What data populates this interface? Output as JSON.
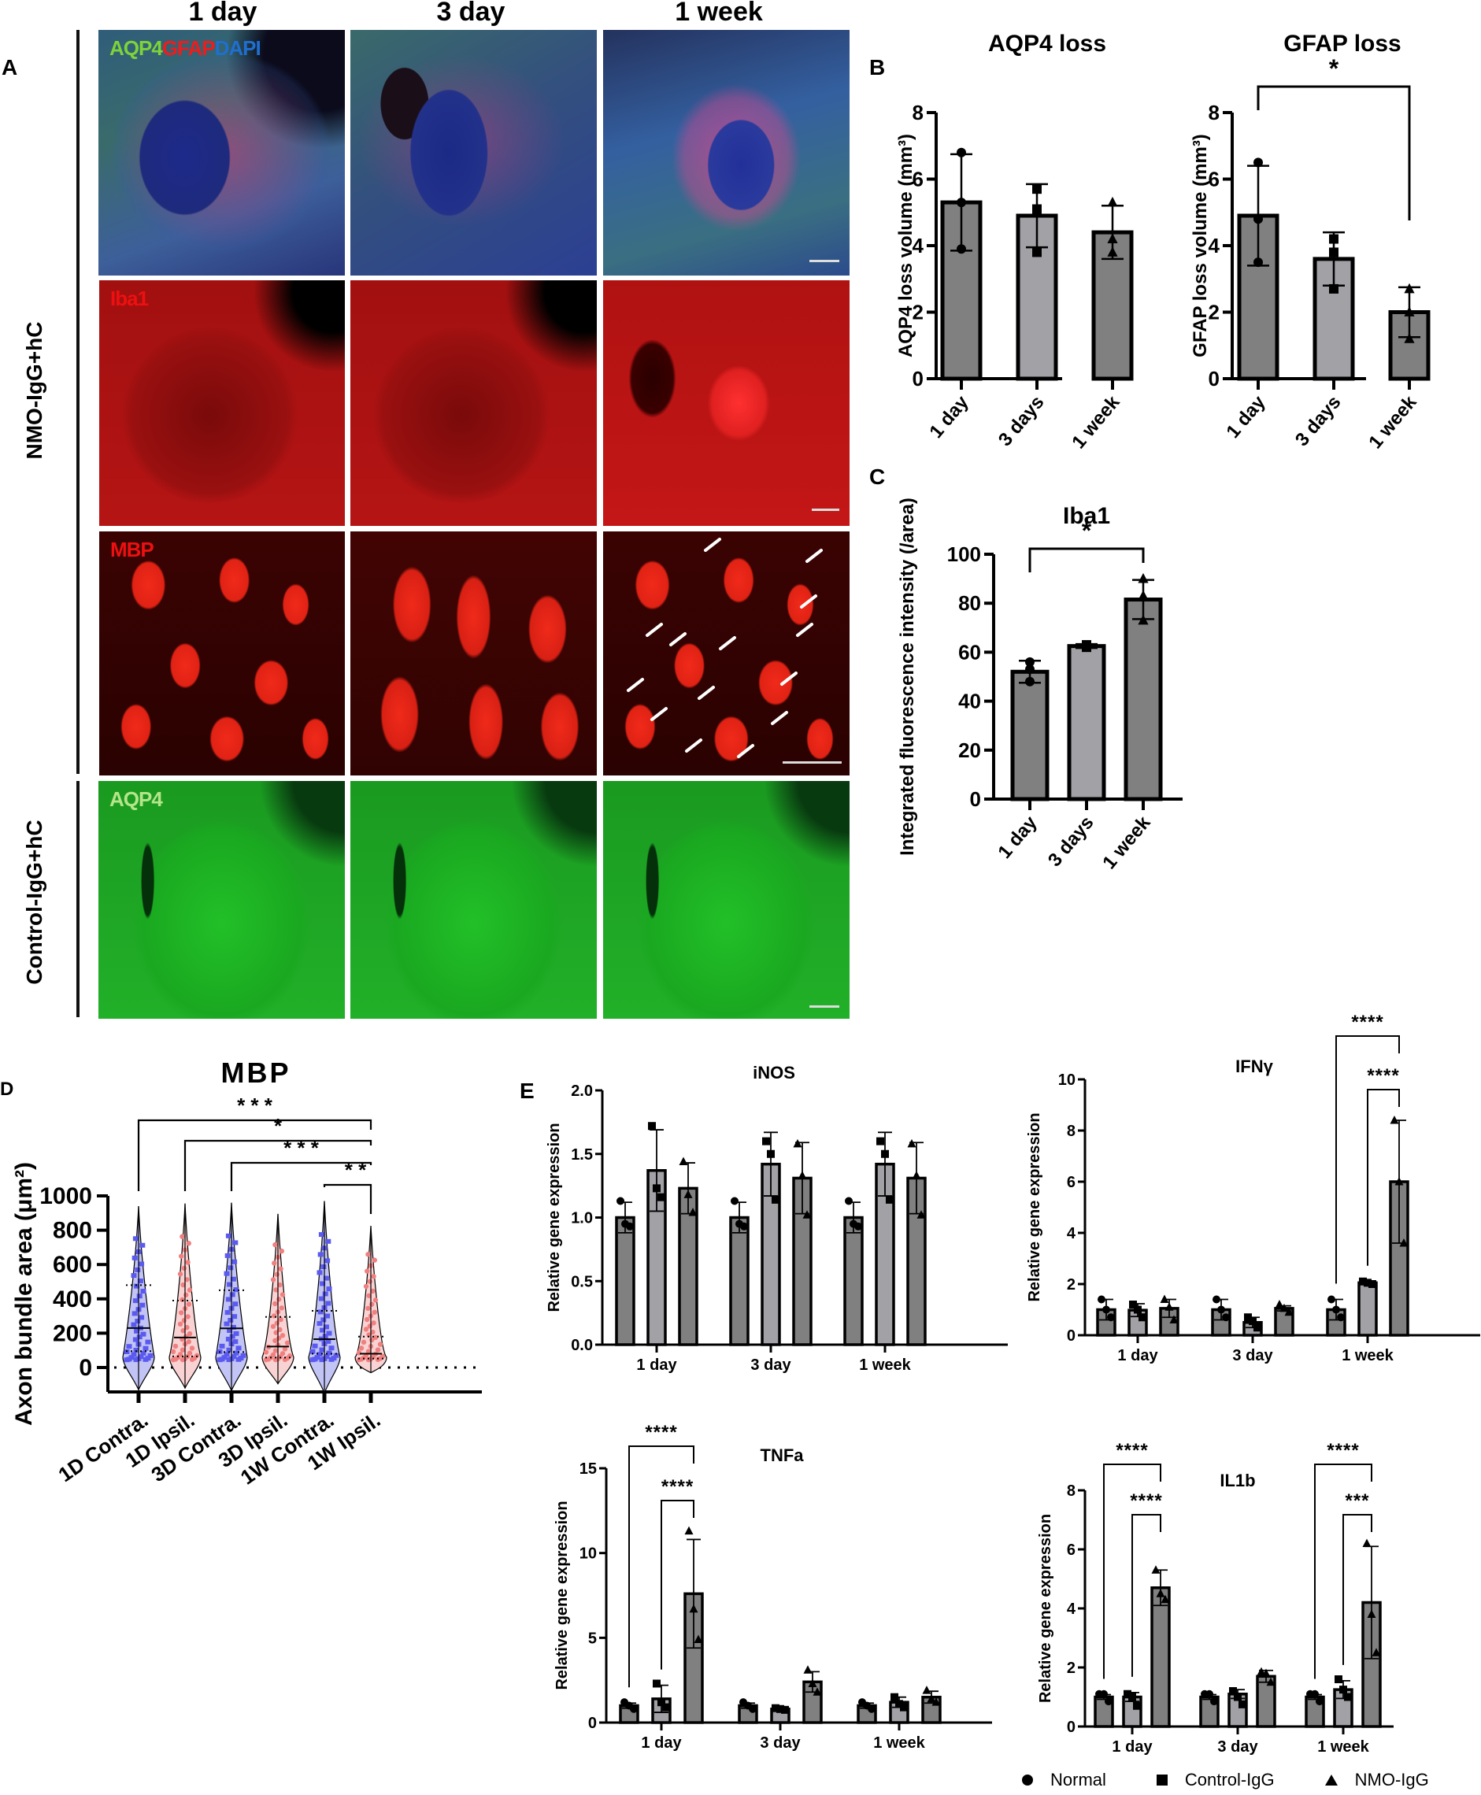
{
  "panel_A": {
    "letter": "A",
    "columns": [
      "1 day",
      "3 day",
      "1 week"
    ],
    "row_groups": [
      "NMO-IgG+hC",
      "Control-IgG+hC"
    ],
    "stain_labels": {
      "triple": [
        "AQP4",
        "GFAP",
        "DAPI"
      ],
      "iba1": "Iba1",
      "mbp": "MBP",
      "aqp4": "AQP4"
    },
    "stain_colors": {
      "AQP4": "#7dd33a",
      "GFAP": "#ee1c1c",
      "DAPI": "#1f6fd0",
      "Iba1": "#ee1010",
      "MBP": "#ee1010",
      "AQP4_ctrl": "#b5e58a"
    }
  },
  "legend": {
    "items": [
      {
        "symbol": "circle",
        "label": "Normal"
      },
      {
        "symbol": "square",
        "label": "Control-IgG"
      },
      {
        "symbol": "triangle",
        "label": "NMO-IgG"
      }
    ]
  },
  "colors": {
    "bar_dark": "#808080",
    "bar_light": "#a1a1a6",
    "violin_blue": "#5a5af0",
    "violin_blue_fill": "#c2c4f5",
    "violin_red": "#f08080",
    "violin_red_fill": "#f9d3d3"
  },
  "chart_data": [
    {
      "id": "B1",
      "panel": "B",
      "type": "bar",
      "title": "AQP4 loss",
      "ylabel": "AQP4 loss volume (mm³)",
      "categories": [
        "1 day",
        "3 days",
        "1 week"
      ],
      "values": [
        5.3,
        4.9,
        4.4
      ],
      "errors": [
        1.45,
        0.95,
        0.8
      ],
      "points": [
        [
          6.8,
          5.3,
          3.9
        ],
        [
          5.7,
          5.1,
          3.8
        ],
        [
          5.3,
          4.2,
          3.8
        ]
      ],
      "markers": [
        "circle",
        "square",
        "triangle"
      ],
      "fills": [
        "dark",
        "light",
        "dark"
      ],
      "ylim": [
        0,
        8
      ],
      "yticks": [
        0,
        2,
        4,
        6,
        8
      ],
      "sig": []
    },
    {
      "id": "B2",
      "panel": "B",
      "type": "bar",
      "title": "GFAP loss",
      "ylabel": "GFAP loss volume (mm³)",
      "categories": [
        "1 day",
        "3 days",
        "1 week"
      ],
      "values": [
        4.9,
        3.6,
        2.0
      ],
      "errors": [
        1.5,
        0.8,
        0.75
      ],
      "points": [
        [
          6.5,
          4.8,
          3.5
        ],
        [
          4.2,
          3.8,
          2.7
        ],
        [
          2.7,
          2.0,
          1.2
        ]
      ],
      "markers": [
        "circle",
        "square",
        "triangle"
      ],
      "fills": [
        "dark",
        "light",
        "dark"
      ],
      "ylim": [
        0,
        8
      ],
      "yticks": [
        0,
        2,
        4,
        6,
        8
      ],
      "sig": [
        {
          "from": 0,
          "to": 2,
          "label": "*"
        }
      ]
    },
    {
      "id": "C",
      "panel": "C",
      "type": "bar",
      "title": "Iba1",
      "ylabel": "Integrated fluorescence intensity (/area)",
      "categories": [
        "1 day",
        "3 days",
        "1 week"
      ],
      "values": [
        52,
        62.5,
        81.5
      ],
      "errors": [
        4.5,
        0.8,
        8.0
      ],
      "points": [
        [
          56,
          53,
          48
        ],
        [
          63,
          62.5,
          62
        ],
        [
          90,
          83,
          73
        ]
      ],
      "markers": [
        "circle",
        "square",
        "triangle"
      ],
      "fills": [
        "dark",
        "light",
        "dark"
      ],
      "ylim": [
        0,
        100
      ],
      "yticks": [
        0,
        20,
        40,
        60,
        80,
        100
      ],
      "sig": [
        {
          "from": 0,
          "to": 2,
          "label": "*"
        }
      ]
    },
    {
      "id": "D",
      "panel": "D",
      "type": "violin",
      "title": "MBP",
      "ylabel": "Axon bundle area (μm²)",
      "categories": [
        "1D Contra.",
        "1D Ipsil.",
        "3D Contra.",
        "3D Ipsil.",
        "1W Contra.",
        "1W Ipsil."
      ],
      "medians": [
        230,
        175,
        228,
        122,
        165,
        80
      ],
      "quartiles": [
        [
          95,
          480
        ],
        [
          65,
          390
        ],
        [
          90,
          450
        ],
        [
          58,
          295
        ],
        [
          80,
          330
        ],
        [
          52,
          180
        ]
      ],
      "range": [
        [
          -130,
          940
        ],
        [
          -120,
          955
        ],
        [
          -135,
          960
        ],
        [
          -95,
          895
        ],
        [
          -150,
          970
        ],
        [
          -30,
          825
        ]
      ],
      "series_color": [
        "blue",
        "red",
        "blue",
        "red",
        "blue",
        "red"
      ],
      "ylim": [
        -150,
        1000
      ],
      "yticks": [
        0,
        200,
        400,
        600,
        800,
        1000
      ],
      "sig": [
        {
          "from": 0,
          "to": 5,
          "label": "* * *"
        },
        {
          "from": 1,
          "to": 5,
          "label": "*"
        },
        {
          "from": 2,
          "to": 5,
          "label": "* * *"
        },
        {
          "from": 4,
          "to": 5,
          "label": "* *"
        }
      ]
    },
    {
      "id": "E1",
      "panel": "E",
      "type": "grouped_bar",
      "title": "iNOS",
      "ylabel": "Relative gene expression",
      "categories": [
        "1 day",
        "3 day",
        "1 week"
      ],
      "series": [
        {
          "name": "Normal",
          "values": [
            1.0,
            1.0,
            1.0
          ],
          "errors": [
            0.12,
            0.12,
            0.12
          ],
          "points": [
            [
              1.13,
              0.95,
              0.93
            ],
            [
              1.13,
              0.95,
              0.93
            ],
            [
              1.13,
              0.95,
              0.93
            ]
          ]
        },
        {
          "name": "Control-IgG",
          "values": [
            1.37,
            1.42,
            1.42
          ],
          "errors": [
            0.32,
            0.25,
            0.25
          ],
          "points": [
            [
              1.72,
              1.23,
              1.16
            ],
            [
              1.6,
              1.5,
              1.14
            ],
            [
              1.6,
              1.5,
              1.14
            ]
          ]
        },
        {
          "name": "NMO-IgG",
          "values": [
            1.23,
            1.31,
            1.31
          ],
          "errors": [
            0.2,
            0.28,
            0.28
          ],
          "points": [
            [
              1.44,
              1.18,
              1.04
            ],
            [
              1.58,
              1.33,
              1.02
            ],
            [
              1.58,
              1.33,
              1.02
            ]
          ]
        }
      ],
      "ylim": [
        0,
        2.0
      ],
      "yticks": [
        0.0,
        0.5,
        1.0,
        1.5,
        2.0
      ],
      "ytick_labels": [
        "0.0",
        "0.5",
        "1.0",
        "1.5",
        "2.0"
      ],
      "sig": []
    },
    {
      "id": "E2",
      "panel": "E",
      "type": "grouped_bar",
      "title": "IFNγ",
      "ylabel": "Relative gene expression",
      "categories": [
        "1 day",
        "3 day",
        "1 week"
      ],
      "series": [
        {
          "name": "Normal",
          "values": [
            1.0,
            1.0,
            1.0
          ],
          "errors": [
            0.4,
            0.4,
            0.4
          ],
          "points": [
            [
              1.4,
              1.0,
              0.7
            ],
            [
              1.4,
              1.0,
              0.7
            ],
            [
              1.4,
              1.0,
              0.7
            ]
          ]
        },
        {
          "name": "Control-IgG",
          "values": [
            0.98,
            0.5,
            2.05
          ],
          "errors": [
            0.25,
            0.2,
            0.05
          ],
          "points": [
            [
              1.2,
              1.0,
              0.7
            ],
            [
              0.7,
              0.55,
              0.3
            ],
            [
              2.1,
              2.05,
              2.0
            ]
          ]
        },
        {
          "name": "NMO-IgG",
          "values": [
            1.05,
            1.05,
            6.0
          ],
          "errors": [
            0.35,
            0.1,
            2.4
          ],
          "points": [
            [
              1.4,
              1.1,
              0.6
            ],
            [
              1.2,
              1.05,
              0.9
            ],
            [
              8.4,
              6.0,
              3.6
            ]
          ]
        }
      ],
      "ylim": [
        0,
        10
      ],
      "yticks": [
        0,
        2,
        4,
        6,
        8,
        10
      ],
      "sig": [
        {
          "group": 2,
          "from": 0,
          "to": 2,
          "label": "****"
        },
        {
          "group": 2,
          "from": 1,
          "to": 2,
          "label": "****"
        }
      ]
    },
    {
      "id": "E3",
      "panel": "E",
      "type": "grouped_bar",
      "title": "TNFa",
      "ylabel": "Relative gene expression",
      "categories": [
        "1 day",
        "3 day",
        "1 week"
      ],
      "series": [
        {
          "name": "Normal",
          "values": [
            1.0,
            1.0,
            1.0
          ],
          "errors": [
            0.15,
            0.15,
            0.15
          ],
          "points": [
            [
              1.2,
              1.0,
              0.8
            ],
            [
              1.2,
              1.0,
              0.8
            ],
            [
              1.2,
              1.0,
              0.8
            ]
          ]
        },
        {
          "name": "Control-IgG",
          "values": [
            1.4,
            0.8,
            1.2
          ],
          "errors": [
            0.8,
            0.05,
            0.3
          ],
          "points": [
            [
              2.3,
              1.2,
              0.9
            ],
            [
              0.85,
              0.8,
              0.75
            ],
            [
              1.5,
              1.1,
              0.9
            ]
          ]
        },
        {
          "name": "NMO-IgG",
          "values": [
            7.6,
            2.4,
            1.5
          ],
          "errors": [
            3.2,
            0.6,
            0.35
          ],
          "points": [
            [
              11.3,
              6.7,
              4.9
            ],
            [
              3.1,
              2.3,
              1.8
            ],
            [
              1.9,
              1.4,
              1.2
            ]
          ]
        }
      ],
      "ylim": [
        0,
        15
      ],
      "yticks": [
        0,
        5,
        10,
        15
      ],
      "sig": [
        {
          "group": 0,
          "from": 0,
          "to": 2,
          "label": "****"
        },
        {
          "group": 0,
          "from": 1,
          "to": 2,
          "label": "****"
        }
      ]
    },
    {
      "id": "E4",
      "panel": "E",
      "type": "grouped_bar",
      "title": "IL1b",
      "ylabel": "Relative gene expression",
      "categories": [
        "1 day",
        "3 day",
        "1 week"
      ],
      "series": [
        {
          "name": "Normal",
          "values": [
            1.0,
            1.0,
            1.0
          ],
          "errors": [
            0.08,
            0.08,
            0.08
          ],
          "points": [
            [
              1.1,
              1.1,
              0.85
            ],
            [
              1.1,
              1.1,
              0.85
            ],
            [
              1.1,
              1.1,
              0.85
            ]
          ]
        },
        {
          "name": "Control-IgG",
          "values": [
            1.0,
            1.1,
            1.25
          ],
          "errors": [
            0.15,
            0.15,
            0.3
          ],
          "points": [
            [
              1.1,
              1.0,
              0.7
            ],
            [
              1.2,
              1.0,
              0.75
            ],
            [
              1.6,
              1.25,
              1.0
            ]
          ]
        },
        {
          "name": "NMO-IgG",
          "values": [
            4.7,
            1.7,
            4.2
          ],
          "errors": [
            0.6,
            0.2,
            1.9
          ],
          "points": [
            [
              5.3,
              4.5,
              4.3
            ],
            [
              1.85,
              1.8,
              1.5
            ],
            [
              6.2,
              3.8,
              2.5
            ]
          ]
        }
      ],
      "ylim": [
        0,
        8
      ],
      "yticks": [
        0,
        2,
        4,
        6,
        8
      ],
      "sig": [
        {
          "group": 0,
          "from": 0,
          "to": 2,
          "label": "****"
        },
        {
          "group": 0,
          "from": 1,
          "to": 2,
          "label": "****"
        },
        {
          "group": 2,
          "from": 0,
          "to": 2,
          "label": "****"
        },
        {
          "group": 2,
          "from": 1,
          "to": 2,
          "label": "***"
        }
      ]
    }
  ]
}
